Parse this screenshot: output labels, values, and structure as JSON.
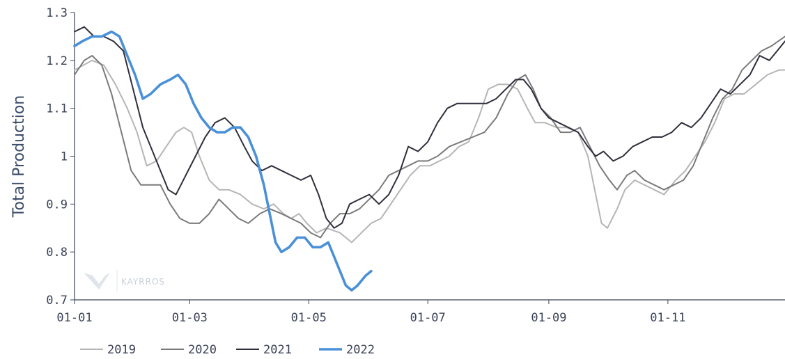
{
  "chart_data": {
    "type": "line",
    "title": "",
    "xlabel": "",
    "ylabel": "Total Production",
    "xlim": [
      1,
      365
    ],
    "ylim": [
      0.7,
      1.3
    ],
    "yticks": [
      0.7,
      0.8,
      0.9,
      1.0,
      1.1,
      1.2,
      1.3
    ],
    "ytick_labels": [
      "0.7",
      "0.8",
      "0.9",
      "1",
      "1.1",
      "1.2",
      "1.3"
    ],
    "xticks": [
      1,
      60,
      121,
      182,
      244,
      305
    ],
    "xtick_labels": [
      "01-01",
      "01-03",
      "01-05",
      "01-07",
      "01-09",
      "01-11"
    ],
    "grid": false,
    "legend_position": "bottom-left",
    "watermark": "KAYRROS",
    "series": [
      {
        "name": "2019",
        "color": "#b5b5b5",
        "points": [
          [
            1,
            1.18
          ],
          [
            10,
            1.2
          ],
          [
            16,
            1.19
          ],
          [
            22,
            1.15
          ],
          [
            28,
            1.1
          ],
          [
            33,
            1.05
          ],
          [
            38,
            0.98
          ],
          [
            43,
            0.99
          ],
          [
            48,
            1.02
          ],
          [
            53,
            1.05
          ],
          [
            57,
            1.06
          ],
          [
            61,
            1.05
          ],
          [
            65,
            1.0
          ],
          [
            70,
            0.95
          ],
          [
            75,
            0.93
          ],
          [
            80,
            0.93
          ],
          [
            86,
            0.92
          ],
          [
            92,
            0.9
          ],
          [
            98,
            0.89
          ],
          [
            103,
            0.9
          ],
          [
            108,
            0.88
          ],
          [
            112,
            0.87
          ],
          [
            116,
            0.88
          ],
          [
            120,
            0.86
          ],
          [
            125,
            0.84
          ],
          [
            130,
            0.85
          ],
          [
            137,
            0.84
          ],
          [
            143,
            0.82
          ],
          [
            148,
            0.84
          ],
          [
            153,
            0.86
          ],
          [
            158,
            0.87
          ],
          [
            163,
            0.9
          ],
          [
            168,
            0.93
          ],
          [
            173,
            0.96
          ],
          [
            178,
            0.98
          ],
          [
            183,
            0.98
          ],
          [
            188,
            0.99
          ],
          [
            193,
            1.0
          ],
          [
            198,
            1.02
          ],
          [
            203,
            1.03
          ],
          [
            208,
            1.08
          ],
          [
            213,
            1.14
          ],
          [
            218,
            1.15
          ],
          [
            223,
            1.15
          ],
          [
            228,
            1.14
          ],
          [
            233,
            1.1
          ],
          [
            237,
            1.07
          ],
          [
            242,
            1.07
          ],
          [
            248,
            1.06
          ],
          [
            253,
            1.06
          ],
          [
            259,
            1.05
          ],
          [
            264,
            1.0
          ],
          [
            268,
            0.92
          ],
          [
            271,
            0.86
          ],
          [
            274,
            0.85
          ],
          [
            279,
            0.89
          ],
          [
            283,
            0.93
          ],
          [
            288,
            0.95
          ],
          [
            293,
            0.94
          ],
          [
            298,
            0.93
          ],
          [
            303,
            0.92
          ],
          [
            309,
            0.95
          ],
          [
            314,
            0.97
          ],
          [
            319,
            1.0
          ],
          [
            324,
            1.03
          ],
          [
            329,
            1.07
          ],
          [
            334,
            1.12
          ],
          [
            339,
            1.13
          ],
          [
            344,
            1.13
          ],
          [
            350,
            1.15
          ],
          [
            356,
            1.17
          ],
          [
            362,
            1.18
          ],
          [
            365,
            1.18
          ]
        ]
      },
      {
        "name": "2020",
        "color": "#7a7a7a",
        "points": [
          [
            1,
            1.17
          ],
          [
            6,
            1.2
          ],
          [
            10,
            1.21
          ],
          [
            15,
            1.19
          ],
          [
            20,
            1.13
          ],
          [
            25,
            1.05
          ],
          [
            30,
            0.97
          ],
          [
            35,
            0.94
          ],
          [
            40,
            0.94
          ],
          [
            45,
            0.94
          ],
          [
            50,
            0.9
          ],
          [
            55,
            0.87
          ],
          [
            60,
            0.86
          ],
          [
            65,
            0.86
          ],
          [
            70,
            0.88
          ],
          [
            75,
            0.91
          ],
          [
            80,
            0.89
          ],
          [
            85,
            0.87
          ],
          [
            90,
            0.86
          ],
          [
            96,
            0.88
          ],
          [
            101,
            0.89
          ],
          [
            107,
            0.88
          ],
          [
            112,
            0.87
          ],
          [
            117,
            0.86
          ],
          [
            122,
            0.84
          ],
          [
            127,
            0.83
          ],
          [
            132,
            0.86
          ],
          [
            137,
            0.88
          ],
          [
            142,
            0.88
          ],
          [
            147,
            0.89
          ],
          [
            152,
            0.91
          ],
          [
            157,
            0.93
          ],
          [
            162,
            0.96
          ],
          [
            167,
            0.97
          ],
          [
            172,
            0.98
          ],
          [
            177,
            0.99
          ],
          [
            182,
            0.99
          ],
          [
            187,
            1.0
          ],
          [
            193,
            1.02
          ],
          [
            199,
            1.03
          ],
          [
            205,
            1.04
          ],
          [
            211,
            1.05
          ],
          [
            217,
            1.08
          ],
          [
            223,
            1.13
          ],
          [
            228,
            1.16
          ],
          [
            232,
            1.17
          ],
          [
            236,
            1.14
          ],
          [
            240,
            1.1
          ],
          [
            245,
            1.08
          ],
          [
            250,
            1.05
          ],
          [
            255,
            1.05
          ],
          [
            260,
            1.06
          ],
          [
            265,
            1.02
          ],
          [
            270,
            0.98
          ],
          [
            275,
            0.95
          ],
          [
            279,
            0.93
          ],
          [
            284,
            0.96
          ],
          [
            288,
            0.97
          ],
          [
            293,
            0.95
          ],
          [
            298,
            0.94
          ],
          [
            303,
            0.93
          ],
          [
            308,
            0.94
          ],
          [
            313,
            0.95
          ],
          [
            318,
            0.98
          ],
          [
            323,
            1.03
          ],
          [
            328,
            1.08
          ],
          [
            333,
            1.12
          ],
          [
            338,
            1.14
          ],
          [
            343,
            1.18
          ],
          [
            348,
            1.2
          ],
          [
            353,
            1.22
          ],
          [
            358,
            1.23
          ],
          [
            365,
            1.25
          ]
        ]
      },
      {
        "name": "2021",
        "color": "#2f2f3b",
        "points": [
          [
            1,
            1.26
          ],
          [
            6,
            1.27
          ],
          [
            11,
            1.25
          ],
          [
            16,
            1.25
          ],
          [
            21,
            1.24
          ],
          [
            26,
            1.22
          ],
          [
            31,
            1.14
          ],
          [
            36,
            1.06
          ],
          [
            40,
            1.02
          ],
          [
            45,
            0.97
          ],
          [
            49,
            0.93
          ],
          [
            53,
            0.92
          ],
          [
            58,
            0.96
          ],
          [
            63,
            1.0
          ],
          [
            68,
            1.04
          ],
          [
            73,
            1.07
          ],
          [
            78,
            1.08
          ],
          [
            83,
            1.06
          ],
          [
            88,
            1.02
          ],
          [
            92,
            0.99
          ],
          [
            97,
            0.97
          ],
          [
            102,
            0.98
          ],
          [
            107,
            0.97
          ],
          [
            112,
            0.96
          ],
          [
            117,
            0.95
          ],
          [
            122,
            0.96
          ],
          [
            126,
            0.92
          ],
          [
            130,
            0.87
          ],
          [
            134,
            0.85
          ],
          [
            138,
            0.86
          ],
          [
            142,
            0.9
          ],
          [
            147,
            0.91
          ],
          [
            152,
            0.92
          ],
          [
            157,
            0.9
          ],
          [
            162,
            0.92
          ],
          [
            167,
            0.96
          ],
          [
            172,
            1.02
          ],
          [
            177,
            1.01
          ],
          [
            182,
            1.03
          ],
          [
            187,
            1.07
          ],
          [
            192,
            1.1
          ],
          [
            197,
            1.11
          ],
          [
            202,
            1.11
          ],
          [
            207,
            1.11
          ],
          [
            212,
            1.11
          ],
          [
            217,
            1.12
          ],
          [
            222,
            1.14
          ],
          [
            227,
            1.16
          ],
          [
            231,
            1.16
          ],
          [
            235,
            1.14
          ],
          [
            240,
            1.1
          ],
          [
            244,
            1.08
          ],
          [
            249,
            1.07
          ],
          [
            254,
            1.06
          ],
          [
            259,
            1.05
          ],
          [
            264,
            1.02
          ],
          [
            268,
            1.0
          ],
          [
            272,
            1.01
          ],
          [
            277,
            0.99
          ],
          [
            282,
            1.0
          ],
          [
            287,
            1.02
          ],
          [
            292,
            1.03
          ],
          [
            297,
            1.04
          ],
          [
            302,
            1.04
          ],
          [
            307,
            1.05
          ],
          [
            312,
            1.07
          ],
          [
            317,
            1.06
          ],
          [
            322,
            1.08
          ],
          [
            327,
            1.11
          ],
          [
            332,
            1.14
          ],
          [
            337,
            1.13
          ],
          [
            342,
            1.15
          ],
          [
            347,
            1.17
          ],
          [
            352,
            1.21
          ],
          [
            357,
            1.2
          ],
          [
            361,
            1.22
          ],
          [
            365,
            1.24
          ]
        ]
      },
      {
        "name": "2022",
        "color": "#4a90d9",
        "points": [
          [
            1,
            1.23
          ],
          [
            5,
            1.24
          ],
          [
            10,
            1.25
          ],
          [
            15,
            1.25
          ],
          [
            20,
            1.26
          ],
          [
            24,
            1.25
          ],
          [
            28,
            1.21
          ],
          [
            32,
            1.17
          ],
          [
            36,
            1.12
          ],
          [
            40,
            1.13
          ],
          [
            45,
            1.15
          ],
          [
            50,
            1.16
          ],
          [
            54,
            1.17
          ],
          [
            58,
            1.15
          ],
          [
            62,
            1.11
          ],
          [
            66,
            1.08
          ],
          [
            70,
            1.06
          ],
          [
            74,
            1.05
          ],
          [
            78,
            1.05
          ],
          [
            82,
            1.06
          ],
          [
            86,
            1.06
          ],
          [
            90,
            1.04
          ],
          [
            94,
            1.0
          ],
          [
            98,
            0.94
          ],
          [
            101,
            0.88
          ],
          [
            104,
            0.82
          ],
          [
            107,
            0.8
          ],
          [
            111,
            0.81
          ],
          [
            115,
            0.83
          ],
          [
            119,
            0.83
          ],
          [
            123,
            0.81
          ],
          [
            127,
            0.81
          ],
          [
            131,
            0.82
          ],
          [
            134,
            0.79
          ],
          [
            137,
            0.76
          ],
          [
            140,
            0.73
          ],
          [
            143,
            0.72
          ],
          [
            146,
            0.73
          ],
          [
            150,
            0.75
          ],
          [
            153,
            0.76
          ]
        ]
      }
    ]
  }
}
